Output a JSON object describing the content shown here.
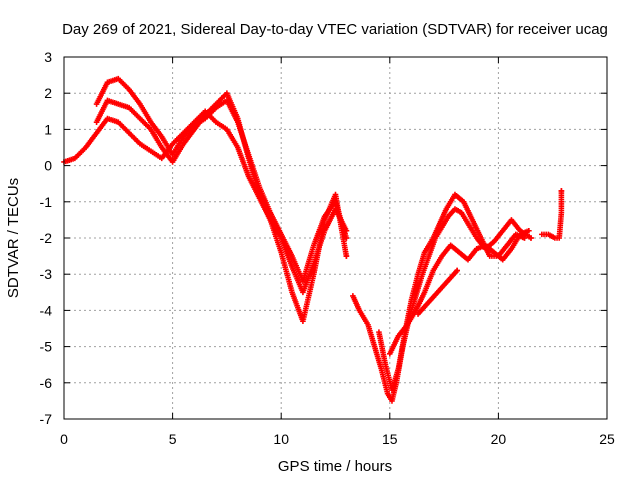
{
  "chart_data": {
    "type": "scatter",
    "title": "Day 269 of 2021, Sidereal Day-to-day VTEC variation (SDTVAR) for receiver ucag",
    "xlabel": "GPS time / hours",
    "ylabel": "SDTVAR / TECUs",
    "xlim": [
      0,
      25
    ],
    "ylim": [
      -7,
      3
    ],
    "x_ticks": [
      "0",
      "5",
      "10",
      "15",
      "20",
      "25"
    ],
    "y_ticks": [
      "3",
      "2",
      "1",
      "0",
      "-1",
      "-2",
      "-3",
      "-4",
      "-5",
      "-6",
      "-7"
    ],
    "grid": true,
    "marker": "+",
    "color": "#ff0000",
    "series": [
      {
        "x": [
          0.0,
          0.5,
          1.0,
          1.5,
          2.0,
          2.5,
          3.0,
          3.5,
          4.0,
          4.5,
          5.0,
          5.5,
          6.0,
          6.5,
          7.0,
          7.5,
          8.0,
          8.5,
          9.0,
          9.5,
          10.0,
          10.5,
          11.0,
          11.5,
          12.0,
          12.5,
          13.0
        ],
        "y": [
          0.1,
          0.2,
          0.5,
          0.9,
          1.3,
          1.2,
          0.9,
          0.6,
          0.4,
          0.2,
          0.6,
          0.9,
          1.2,
          1.5,
          1.2,
          1.0,
          0.5,
          -0.3,
          -0.9,
          -1.5,
          -2.0,
          -2.8,
          -3.5,
          -2.7,
          -1.8,
          -1.2,
          -1.8
        ]
      },
      {
        "x": [
          1.5,
          2.0,
          2.5,
          3.0,
          3.5,
          4.0,
          4.5,
          5.0,
          5.5,
          6.0,
          6.5,
          7.0,
          7.5,
          8.0,
          8.5,
          9.0,
          9.5,
          10.0,
          10.5,
          11.0,
          11.5,
          12.0,
          12.5,
          13.0
        ],
        "y": [
          1.7,
          2.3,
          2.4,
          2.1,
          1.7,
          1.2,
          0.8,
          0.3,
          0.8,
          1.1,
          1.3,
          1.6,
          1.8,
          1.2,
          0.3,
          -0.6,
          -1.3,
          -1.9,
          -2.5,
          -3.2,
          -2.2,
          -1.4,
          -1.0,
          -2.0
        ]
      },
      {
        "x": [
          1.5,
          2.0,
          2.5,
          3.0,
          3.5,
          4.0,
          4.5,
          5.0,
          5.5,
          6.0,
          6.5,
          7.0,
          7.5,
          8.0,
          8.5,
          9.0,
          9.5,
          10.0,
          10.5,
          11.0,
          11.5,
          12.0,
          12.5,
          13.0
        ],
        "y": [
          1.2,
          1.8,
          1.7,
          1.6,
          1.3,
          1.0,
          0.5,
          0.1,
          0.6,
          1.0,
          1.4,
          1.7,
          2.0,
          1.3,
          0.2,
          -0.8,
          -1.5,
          -2.4,
          -3.5,
          -4.3,
          -3.0,
          -1.5,
          -0.8,
          -2.5
        ]
      },
      {
        "x": [
          13.3,
          13.6,
          14.0,
          14.3,
          14.6,
          14.9,
          15.1,
          15.3,
          15.6,
          15.9,
          16.2,
          16.5,
          16.8,
          17.1,
          17.4,
          17.7,
          18.0,
          18.3,
          18.6,
          19.0,
          19.4,
          19.8,
          20.2,
          20.6,
          21.0,
          21.5
        ],
        "y": [
          -3.6,
          -4.0,
          -4.4,
          -5.0,
          -5.6,
          -6.3,
          -6.5,
          -6.0,
          -5.0,
          -4.2,
          -3.6,
          -3.0,
          -2.5,
          -2.0,
          -1.7,
          -1.4,
          -1.2,
          -1.3,
          -1.6,
          -2.0,
          -2.3,
          -2.1,
          -1.8,
          -1.5,
          -1.8,
          -2.0
        ]
      },
      {
        "x": [
          14.5,
          14.8,
          15.1,
          15.4,
          15.7,
          16.0,
          16.3,
          16.6,
          17.0,
          17.3,
          17.6,
          18.0,
          18.4,
          18.8,
          19.2,
          19.6,
          20.0,
          20.4,
          20.8,
          21.2
        ],
        "y": [
          -4.6,
          -5.5,
          -6.2,
          -5.6,
          -4.6,
          -3.7,
          -3.0,
          -2.4,
          -2.0,
          -1.6,
          -1.2,
          -0.8,
          -1.0,
          -1.5,
          -2.0,
          -2.5,
          -2.5,
          -2.2,
          -1.9,
          -2.0
        ]
      },
      {
        "x": [
          15.0,
          15.4,
          15.8,
          16.2,
          16.6,
          17.0,
          17.4,
          17.8,
          18.2,
          18.6,
          19.0,
          19.4,
          19.8,
          20.2,
          20.6,
          21.0,
          21.4
        ],
        "y": [
          -5.2,
          -4.7,
          -4.4,
          -4.0,
          -3.5,
          -2.9,
          -2.5,
          -2.2,
          -2.4,
          -2.6,
          -2.3,
          -2.2,
          -2.4,
          -2.6,
          -2.3,
          -1.9,
          -1.8
        ]
      },
      {
        "x": [
          16.3,
          16.6,
          16.9,
          17.2,
          17.5,
          17.8,
          18.1
        ],
        "y": [
          -4.1,
          -3.9,
          -3.7,
          -3.5,
          -3.3,
          -3.1,
          -2.9
        ]
      },
      {
        "x": [
          22.0,
          22.3,
          22.6,
          22.8,
          22.9,
          22.9
        ],
        "y": [
          -1.9,
          -1.9,
          -2.0,
          -2.0,
          -1.3,
          -0.7
        ]
      }
    ]
  }
}
